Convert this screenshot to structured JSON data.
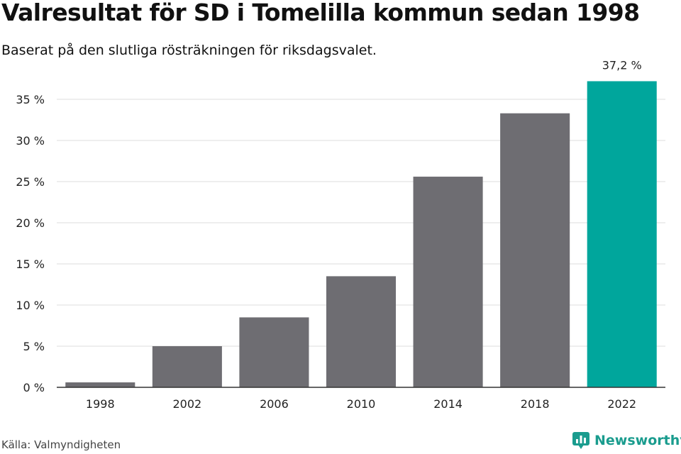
{
  "title": "Valresultat för SD i Tomelilla kommun sedan 1998",
  "subtitle": "Baserat på den slutliga rösträkningen för riksdagsvalet.",
  "source": "Källa: Valmyndigheten",
  "brand": {
    "name": "Newsworthy",
    "icon": "newsworthy-logo-icon",
    "color": "#1a9c8e"
  },
  "chart_data": {
    "type": "bar",
    "categories": [
      "1998",
      "2002",
      "2006",
      "2010",
      "2014",
      "2018",
      "2022"
    ],
    "values": [
      0.6,
      5.0,
      8.5,
      13.5,
      25.6,
      33.3,
      37.2
    ],
    "ylim": [
      0,
      35
    ],
    "yticks": [
      "0 %",
      "5 %",
      "10 %",
      "15 %",
      "20 %",
      "25 %",
      "30 %",
      "35 %"
    ],
    "grid": true,
    "colors": {
      "default": "#6e6d72",
      "highlight": "#00a69c"
    },
    "highlight_index": 6,
    "data_labels": [
      "",
      "",
      "",
      "",
      "",
      "",
      "37,2 %"
    ]
  }
}
